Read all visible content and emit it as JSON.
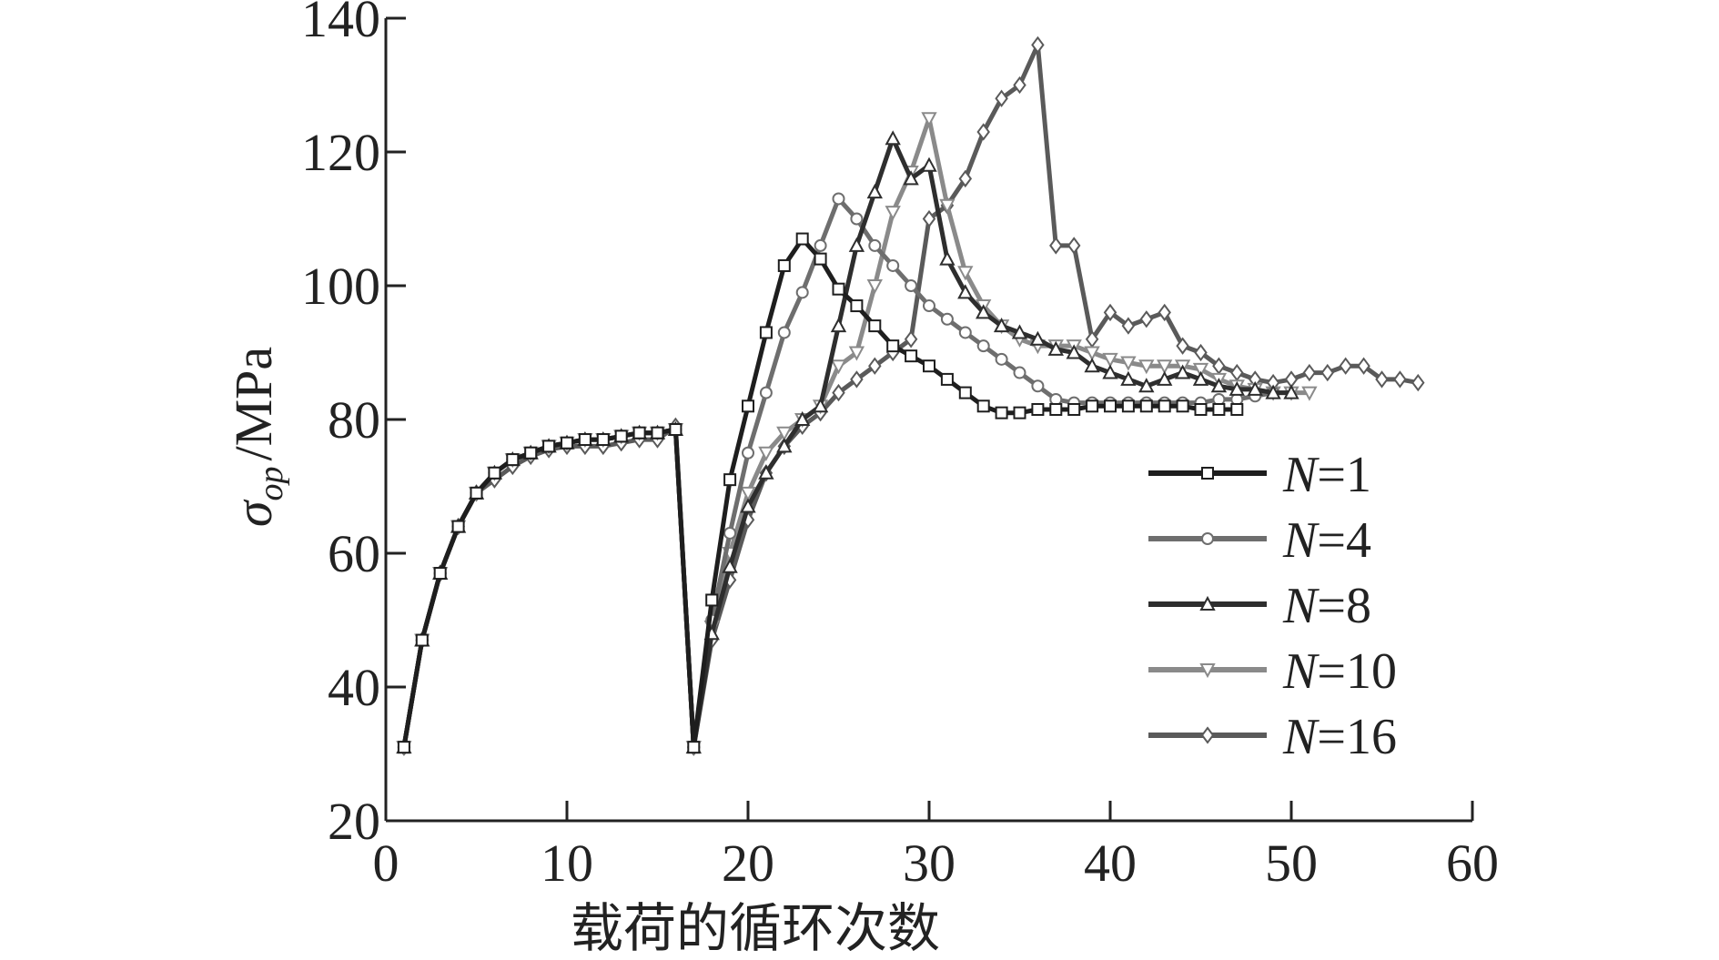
{
  "chart_data": {
    "type": "line",
    "xlabel": "载荷的循环次数",
    "ylabel": {
      "symbol": "σ",
      "subscript": "op",
      "unit": "/MPa"
    },
    "xlim": [
      0,
      60
    ],
    "ylim": [
      20,
      140
    ],
    "xticks": [
      "0",
      "10",
      "20",
      "30",
      "40",
      "50",
      "60"
    ],
    "yticks": [
      "20",
      "40",
      "60",
      "80",
      "100",
      "120",
      "140"
    ],
    "grid": false,
    "legend_position": "bottom-right",
    "series": [
      {
        "name_var": "N",
        "name_rest": "=1",
        "marker": "square",
        "color": "#1e1e1e",
        "x": [
          1,
          2,
          3,
          4,
          5,
          6,
          7,
          8,
          9,
          10,
          11,
          12,
          13,
          14,
          15,
          16,
          17,
          18,
          19,
          20,
          21,
          22,
          23,
          24,
          25,
          26,
          27,
          28,
          29,
          30,
          31,
          32,
          33,
          34,
          35,
          36,
          37,
          38,
          39,
          40,
          41,
          42,
          43,
          44,
          45,
          46,
          47
        ],
        "y": [
          31,
          47,
          57,
          64,
          69,
          72,
          74,
          75,
          76,
          76.5,
          77,
          77,
          77.5,
          78,
          78,
          78.5,
          31,
          53,
          71,
          82,
          93,
          103,
          107,
          104,
          99.5,
          97,
          94,
          91,
          89.5,
          88,
          86,
          84,
          82,
          81,
          81,
          81.5,
          81.5,
          81.5,
          82,
          82,
          82,
          82,
          82,
          82,
          81.5,
          81.5,
          81.5
        ]
      },
      {
        "name_var": "N",
        "name_rest": "=4",
        "marker": "circle",
        "color": "#6e6e6e",
        "x": [
          1,
          2,
          3,
          4,
          5,
          6,
          7,
          8,
          9,
          10,
          11,
          12,
          13,
          14,
          15,
          16,
          17,
          18,
          19,
          20,
          21,
          22,
          23,
          24,
          25,
          26,
          27,
          28,
          29,
          30,
          31,
          32,
          33,
          34,
          35,
          36,
          37,
          38,
          39,
          40,
          41,
          42,
          43,
          44,
          45,
          46,
          47,
          48,
          49
        ],
        "y": [
          31,
          47,
          57,
          64,
          69,
          72,
          74,
          75,
          76,
          76.5,
          77,
          77,
          77.5,
          78,
          78,
          78.5,
          31,
          50,
          63,
          75,
          84,
          93,
          99,
          106,
          113,
          110,
          106,
          103,
          100,
          97,
          95,
          93,
          91,
          89,
          87,
          85,
          83,
          82.5,
          82.5,
          82.5,
          82.5,
          82.5,
          82.5,
          82.5,
          82.5,
          83,
          83,
          83.5,
          84
        ]
      },
      {
        "name_var": "N",
        "name_rest": "=8",
        "marker": "triangle-up",
        "color": "#2e2e2e",
        "x": [
          1,
          2,
          3,
          4,
          5,
          6,
          7,
          8,
          9,
          10,
          11,
          12,
          13,
          14,
          15,
          16,
          17,
          18,
          19,
          20,
          21,
          22,
          23,
          24,
          25,
          26,
          27,
          28,
          29,
          30,
          31,
          32,
          33,
          34,
          35,
          36,
          37,
          38,
          39,
          40,
          41,
          42,
          43,
          44,
          45,
          46,
          47,
          48,
          49,
          50
        ],
        "y": [
          31,
          47,
          57,
          64,
          69,
          72,
          74,
          75,
          76,
          76.5,
          77,
          77,
          77.5,
          78,
          78,
          78.5,
          31,
          48,
          58,
          67,
          72,
          76,
          80,
          82,
          94,
          106,
          114,
          122,
          116,
          118,
          104,
          99,
          96,
          94,
          93,
          92,
          90.5,
          90,
          88,
          87,
          86,
          85,
          86,
          87,
          86,
          85,
          84.5,
          84.5,
          84,
          84
        ]
      },
      {
        "name_var": "N",
        "name_rest": "=10",
        "marker": "triangle-down",
        "color": "#8a8a8a",
        "x": [
          1,
          2,
          3,
          4,
          5,
          6,
          7,
          8,
          9,
          10,
          11,
          12,
          13,
          14,
          15,
          16,
          17,
          18,
          19,
          20,
          21,
          22,
          23,
          24,
          25,
          26,
          27,
          28,
          29,
          30,
          31,
          32,
          33,
          34,
          35,
          36,
          37,
          38,
          39,
          40,
          41,
          42,
          43,
          44,
          45,
          46,
          47,
          48,
          49,
          50,
          51
        ],
        "y": [
          31,
          47,
          57,
          64,
          69,
          72,
          74,
          75,
          76,
          76.5,
          77,
          77,
          77.5,
          78,
          78,
          78.5,
          31,
          49,
          60,
          69,
          75,
          78,
          80,
          82,
          88,
          90,
          100,
          111,
          117,
          125,
          112,
          102,
          97,
          94,
          92,
          91,
          91,
          91,
          90,
          89,
          88.5,
          88,
          88,
          88,
          87.5,
          86,
          85,
          84.5,
          84,
          84,
          84
        ]
      },
      {
        "name_var": "N",
        "name_rest": "=16",
        "marker": "diamond",
        "color": "#5a5a5a",
        "x": [
          1,
          2,
          3,
          4,
          5,
          6,
          7,
          8,
          9,
          10,
          11,
          12,
          13,
          14,
          15,
          16,
          17,
          18,
          19,
          20,
          21,
          22,
          23,
          24,
          25,
          26,
          27,
          28,
          29,
          30,
          31,
          32,
          33,
          34,
          35,
          36,
          37,
          38,
          39,
          40,
          41,
          42,
          43,
          44,
          45,
          46,
          47,
          48,
          49,
          50,
          51,
          52,
          53,
          54,
          55,
          56,
          57
        ],
        "y": [
          31,
          47,
          57,
          64,
          69,
          71,
          73,
          74.5,
          75.5,
          76,
          76,
          76,
          76.5,
          77,
          77,
          79,
          31,
          47,
          56,
          65,
          72,
          76,
          79,
          81,
          84,
          86,
          88,
          90,
          92,
          110,
          112,
          116,
          123,
          128,
          130,
          136,
          106,
          106,
          92,
          96,
          94,
          95,
          96,
          91,
          90,
          88,
          87,
          86,
          85.5,
          86,
          87,
          87,
          88,
          88,
          86,
          86,
          85.5
        ]
      }
    ]
  }
}
